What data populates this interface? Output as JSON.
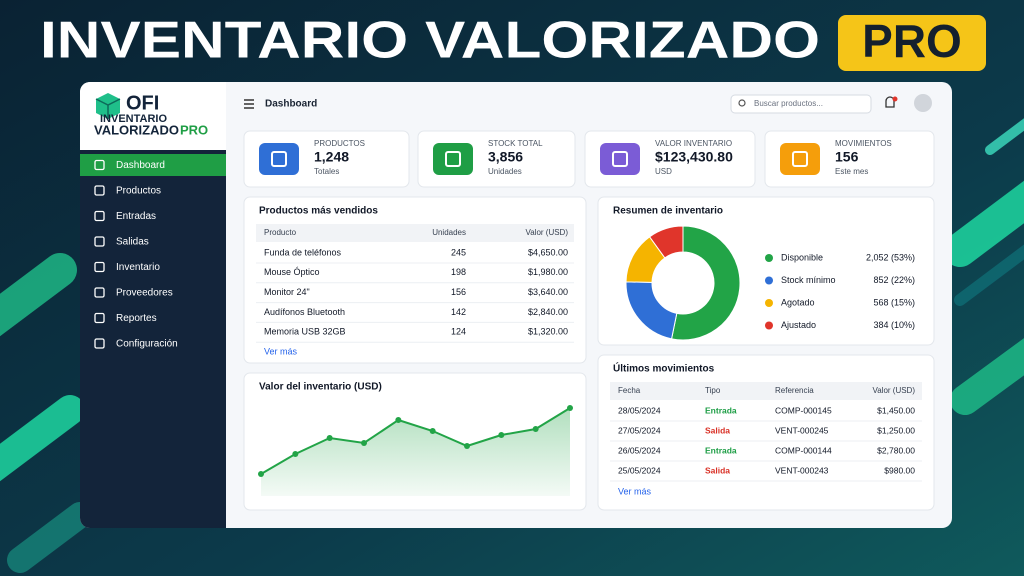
{
  "banner": {
    "title": "INVENTARIO VALORIZADO",
    "badge": "PRO"
  },
  "logo": {
    "name": "OFI",
    "line1": "INVENTARIO",
    "line2": "VALORIZADO",
    "badge": "PRO"
  },
  "sidebar": [
    "Dashboard",
    "Productos",
    "Entradas",
    "Salidas",
    "Inventario",
    "Proveedores",
    "Reportes",
    "Configuración"
  ],
  "topbar": {
    "title": "Dashboard",
    "search_placeholder": "Buscar productos..."
  },
  "stats": [
    {
      "label": "PRODUCTOS",
      "value": "1,248",
      "sub": "Totales",
      "color": "#2f6fd6"
    },
    {
      "label": "STOCK TOTAL",
      "value": "3,856",
      "sub": "Unidades",
      "color": "#1f9e45"
    },
    {
      "label": "VALOR INVENTARIO",
      "value": "$123,430.80",
      "sub": "USD",
      "color": "#7b5cd6"
    },
    {
      "label": "MOVIMIENTOS",
      "value": "156",
      "sub": "Este mes",
      "color": "#f59e0b"
    }
  ],
  "top_products": {
    "title": "Productos más vendidos",
    "columns": [
      "Producto",
      "Unidades",
      "Valor (USD)"
    ],
    "rows": [
      [
        "Funda de teléfonos",
        "245",
        "$4,650.00"
      ],
      [
        "Mouse Óptico",
        "198",
        "$1,980.00"
      ],
      [
        "Monitor 24\"",
        "156",
        "$3,640.00"
      ],
      [
        "Audífonos Bluetooth",
        "142",
        "$2,840.00"
      ],
      [
        "Memoria USB 32GB",
        "124",
        "$1,320.00"
      ]
    ],
    "more": "Ver más"
  },
  "inventory_value": {
    "type": "line",
    "title": "Valor del inventario (USD)",
    "values": [
      21,
      41,
      57,
      52,
      75,
      64,
      49,
      60,
      66,
      87
    ],
    "color": "#22a447"
  },
  "inventory_summary": {
    "type": "pie",
    "title": "Resumen de inventario",
    "categories": [
      "Disponible",
      "Stock mínimo",
      "Agotado",
      "Ajustado"
    ],
    "values": [
      2052,
      852,
      568,
      384
    ],
    "value_labels": [
      "2,052 (53%)",
      "852 (22%)",
      "568 (15%)",
      "384 (10%)"
    ],
    "colors": [
      "#22a447",
      "#2f6fd6",
      "#f5b400",
      "#e0352b"
    ]
  },
  "movements": {
    "title": "Últimos movimientos",
    "columns": [
      "Fecha",
      "Tipo",
      "Referencia",
      "Valor (USD)"
    ],
    "rows": [
      [
        "28/05/2024",
        "Entrada",
        "COMP-000145",
        "$1,450.00"
      ],
      [
        "27/05/2024",
        "Salida",
        "VENT-000245",
        "$1,250.00"
      ],
      [
        "26/05/2024",
        "Entrada",
        "COMP-000144",
        "$2,780.00"
      ],
      [
        "25/05/2024",
        "Salida",
        "VENT-000243",
        "$980.00"
      ]
    ],
    "type_colors": {
      "Entrada": "#1e9e46",
      "Salida": "#d93025"
    },
    "more": "Ver más"
  }
}
